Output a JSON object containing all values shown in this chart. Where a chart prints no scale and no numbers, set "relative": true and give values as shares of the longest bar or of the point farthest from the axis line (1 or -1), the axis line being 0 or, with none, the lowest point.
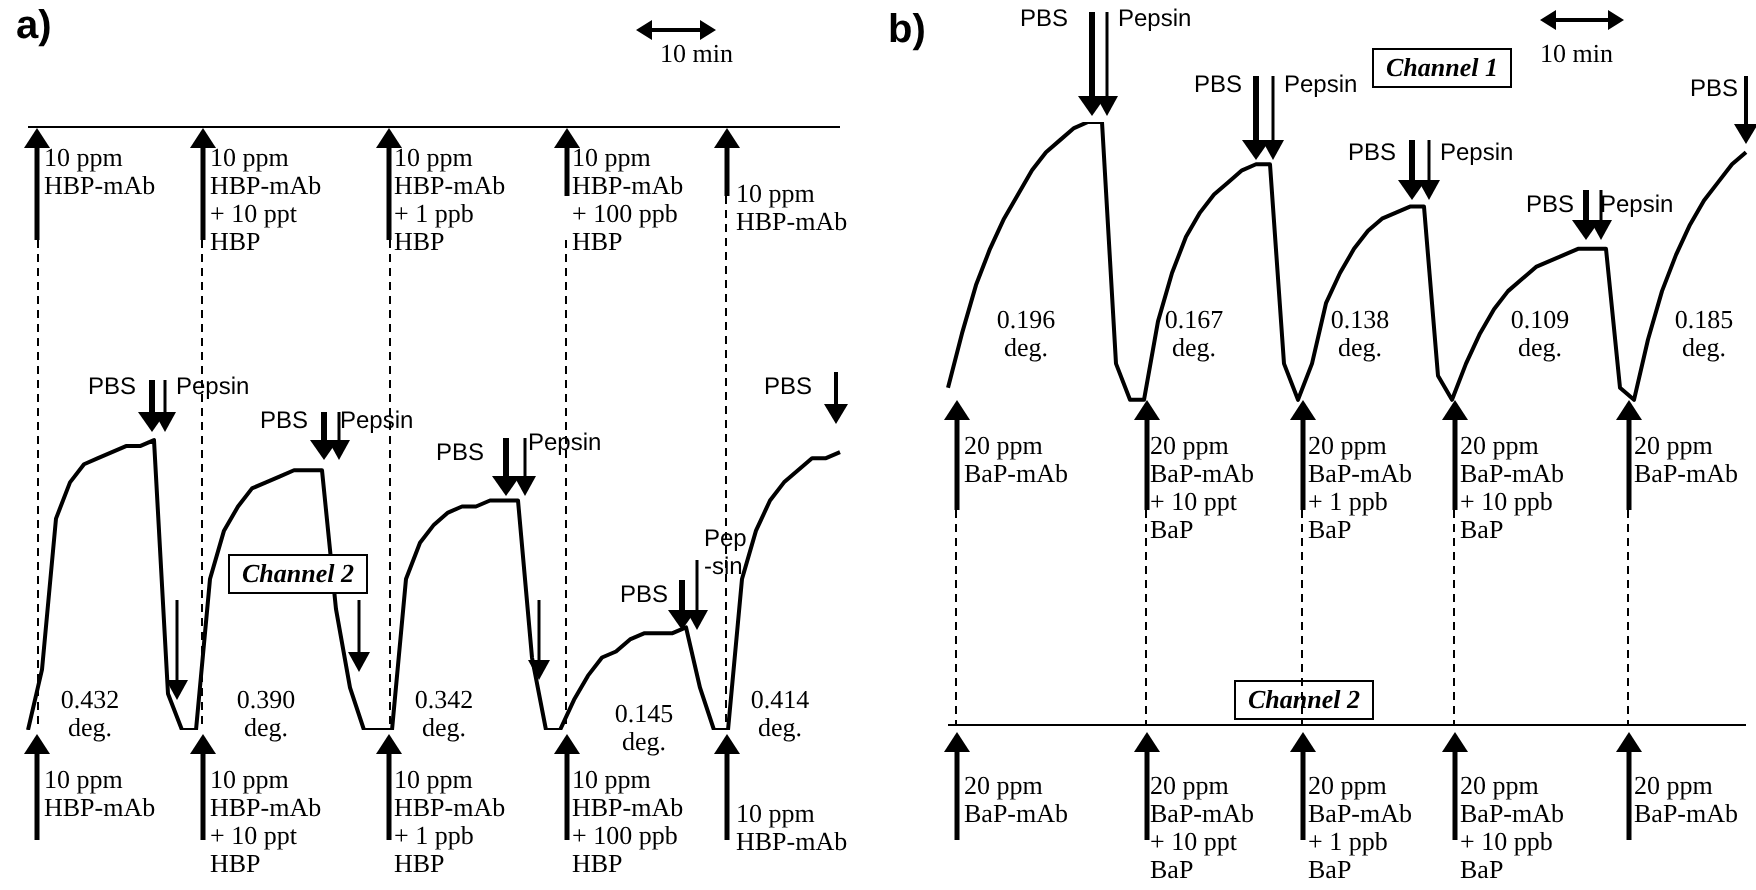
{
  "chart_data": [
    {
      "type": "line",
      "title": "a)",
      "relative": true,
      "legend": false,
      "marker": "none",
      "line_style": "solid",
      "tick_labels": false,
      "categories": [
        null,
        null,
        null,
        null,
        null,
        null,
        null,
        null,
        null,
        null,
        null,
        null,
        null,
        null,
        null,
        null,
        null,
        null,
        null,
        null,
        null,
        null,
        null,
        null,
        null,
        null,
        null,
        null,
        null,
        null,
        null,
        null,
        null,
        null,
        null,
        null,
        null,
        null,
        null,
        null,
        null,
        null,
        null,
        null,
        null,
        null,
        null,
        null,
        null,
        null,
        null,
        null,
        null,
        null,
        null,
        null,
        null,
        null,
        null
      ],
      "series": [
        {
          "color": "#000000",
          "values": [
            1,
            1,
            1,
            1,
            1,
            1,
            1,
            1,
            1,
            1,
            1,
            1,
            1,
            1,
            1,
            1,
            1,
            1,
            1,
            1,
            1,
            1,
            1,
            1,
            1,
            1,
            1,
            1,
            1,
            1,
            1,
            1,
            1,
            1,
            1,
            1,
            1,
            1,
            1,
            1,
            1,
            1,
            1,
            1,
            1,
            1,
            1,
            1,
            1,
            1,
            1,
            1,
            1,
            1,
            1,
            1,
            1,
            1,
            1
          ]
        },
        {
          "name": "Channel 2",
          "color": "#000000",
          "values": [
            0,
            0.1,
            0.35,
            0.41,
            0.44,
            0.45,
            0.46,
            0.47,
            0.47,
            0.48,
            0.06,
            0,
            0,
            0.25,
            0.33,
            0.37,
            0.4,
            0.41,
            0.42,
            0.43,
            0.43,
            0.43,
            0.2,
            0.07,
            0,
            0,
            0,
            0.25,
            0.31,
            0.34,
            0.36,
            0.37,
            0.37,
            0.38,
            0.38,
            0.38,
            0.12,
            0,
            0,
            0.05,
            0.09,
            0.12,
            0.13,
            0.15,
            0.16,
            0.16,
            0.16,
            0.17,
            0.07,
            0,
            0,
            0.25,
            0.33,
            0.38,
            0.41,
            0.43,
            0.45,
            0.45,
            0.46
          ]
        }
      ],
      "annotations": [
        "10 min",
        "10 ppm\nHBP-mAb",
        "10 ppm\nHBP-mAb\n+ 10 ppt\nHBP",
        "10 ppm\nHBP-mAb\n+ 1 ppb\nHBP",
        "10 ppm\nHBP-mAb\n+ 100 ppb\nHBP",
        "10 ppm\nHBP-mAb",
        "10 ppm\nHBP-mAb",
        "10 ppm\nHBP-mAb\n+ 10 ppt\nHBP",
        "10 ppm\nHBP-mAb\n+ 1 ppb\nHBP",
        "10 ppm\nHBP-mAb\n+ 100 ppb\nHBP",
        "10 ppm\nHBP-mAb",
        "PBS",
        "Pepsin",
        "PBS",
        "Pepsin",
        "PBS",
        "Pepsin",
        "PBS",
        "Pep\n-sin",
        "PBS",
        "0.432\ndeg.",
        "0.390\ndeg.",
        "0.342\ndeg.",
        "0.145\ndeg.",
        "0.414\ndeg."
      ]
    },
    {
      "type": "line",
      "title": "b)",
      "relative": true,
      "legend": false,
      "marker": "none",
      "line_style": "solid",
      "tick_labels": false,
      "categories": [
        null,
        null,
        null,
        null,
        null,
        null,
        null,
        null,
        null,
        null,
        null,
        null,
        null,
        null,
        null,
        null,
        null,
        null,
        null,
        null,
        null,
        null,
        null,
        null,
        null,
        null,
        null,
        null,
        null,
        null,
        null,
        null,
        null,
        null,
        null,
        null,
        null,
        null,
        null,
        null,
        null,
        null,
        null,
        null,
        null,
        null,
        null,
        null,
        null,
        null,
        null,
        null,
        null,
        null,
        null,
        null,
        null,
        null
      ],
      "series": [
        {
          "name": "Channel 1",
          "color": "#000000",
          "values": [
            0.56,
            0.65,
            0.73,
            0.79,
            0.84,
            0.88,
            0.92,
            0.95,
            0.97,
            0.99,
            1,
            1,
            0.6,
            0.54,
            0.54,
            0.67,
            0.75,
            0.81,
            0.85,
            0.88,
            0.9,
            0.92,
            0.93,
            0.93,
            0.6,
            0.54,
            0.6,
            0.7,
            0.75,
            0.79,
            0.82,
            0.84,
            0.85,
            0.86,
            0.86,
            0.58,
            0.54,
            0.6,
            0.65,
            0.69,
            0.72,
            0.74,
            0.76,
            0.77,
            0.78,
            0.79,
            0.79,
            0.79,
            0.56,
            0.54,
            0.64,
            0.72,
            0.78,
            0.83,
            0.87,
            0.9,
            0.93,
            0.95
          ]
        },
        {
          "name": "Channel 2",
          "color": "#000000",
          "values": [
            0,
            0,
            0,
            0,
            0,
            0,
            0,
            0,
            0,
            0,
            0,
            0,
            0,
            0,
            0,
            0,
            0,
            0,
            0,
            0,
            0,
            0,
            0,
            0,
            0,
            0,
            0,
            0,
            0,
            0,
            0,
            0,
            0,
            0,
            0,
            0,
            0,
            0,
            0,
            0,
            0,
            0,
            0,
            0,
            0,
            0,
            0,
            0,
            0,
            0,
            0,
            0,
            0,
            0,
            0,
            0,
            0,
            0
          ]
        }
      ],
      "annotations": [
        "10 min",
        "20 ppm\nBaP-mAb",
        "20 ppm\nBaP-mAb\n+ 10 ppt\nBaP",
        "20 ppm\nBaP-mAb\n+ 1 ppb\nBaP",
        "20 ppm\nBaP-mAb\n+ 10 ppb\nBaP",
        "20 ppm\nBaP-mAb",
        "20 ppm\nBaP-mAb",
        "20 ppm\nBaP-mAb\n+ 10 ppt\nBaP",
        "20 ppm\nBaP-mAb\n+ 1 ppb\nBaP",
        "20 ppm\nBaP-mAb\n+ 10 ppb\nBaP",
        "20 ppm\nBaP-mAb",
        "PBS",
        "Pepsin",
        "PBS",
        "Pepsin",
        "PBS",
        "Pepsin",
        "PBS",
        "Pepsin",
        "PBS",
        "0.196\ndeg.",
        "0.167\ndeg.",
        "0.138\ndeg.",
        "0.109\ndeg.",
        "0.185\ndeg."
      ]
    }
  ]
}
